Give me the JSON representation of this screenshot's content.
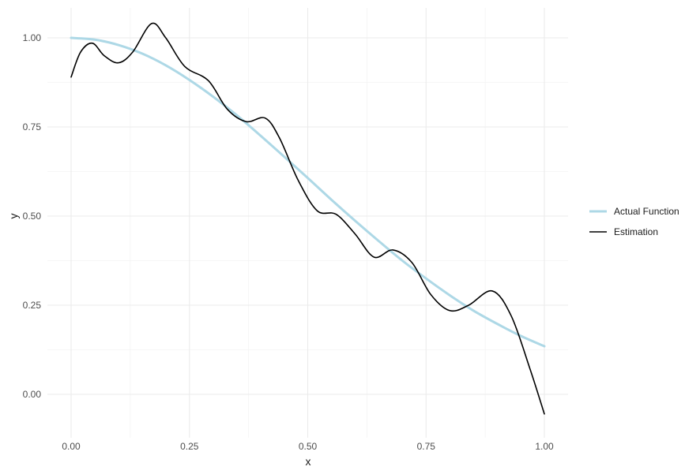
{
  "chart_data": {
    "type": "line",
    "title": "",
    "xlabel": "x",
    "ylabel": "y",
    "xlim": [
      -0.05,
      1.05
    ],
    "ylim": [
      -0.11,
      1.065
    ],
    "x_ticks": [
      0.0,
      0.25,
      0.5,
      0.75,
      1.0
    ],
    "x_tick_labels": [
      "0.00",
      "0.25",
      "0.50",
      "0.75",
      "1.00"
    ],
    "y_ticks": [
      0.0,
      0.25,
      0.5,
      0.75,
      1.0
    ],
    "y_tick_labels": [
      "0.00",
      "0.25",
      "0.50",
      "0.75",
      "1.00"
    ],
    "grid": true,
    "legend_position": "right",
    "series": [
      {
        "name": "Actual Function",
        "color": "#add8e6",
        "x": [
          0.0,
          0.05,
          0.1,
          0.15,
          0.2,
          0.25,
          0.3,
          0.35,
          0.4,
          0.45,
          0.5,
          0.55,
          0.6,
          0.65,
          0.7,
          0.75,
          0.8,
          0.85,
          0.9,
          0.95,
          1.0
        ],
        "y": [
          1.0,
          0.995,
          0.98,
          0.956,
          0.923,
          0.882,
          0.835,
          0.783,
          0.726,
          0.667,
          0.607,
          0.546,
          0.487,
          0.43,
          0.375,
          0.325,
          0.278,
          0.235,
          0.198,
          0.164,
          0.135
        ]
      },
      {
        "name": "Estimation",
        "color": "#000000",
        "x": [
          0.0,
          0.02,
          0.045,
          0.07,
          0.1,
          0.13,
          0.17,
          0.2,
          0.24,
          0.29,
          0.33,
          0.37,
          0.41,
          0.44,
          0.48,
          0.52,
          0.56,
          0.6,
          0.64,
          0.68,
          0.72,
          0.76,
          0.8,
          0.84,
          0.89,
          0.93,
          0.97,
          1.0
        ],
        "y": [
          0.89,
          0.96,
          0.985,
          0.95,
          0.93,
          0.96,
          1.04,
          1.0,
          0.92,
          0.88,
          0.8,
          0.765,
          0.775,
          0.72,
          0.6,
          0.515,
          0.505,
          0.45,
          0.385,
          0.405,
          0.37,
          0.28,
          0.235,
          0.25,
          0.29,
          0.22,
          0.07,
          -0.055
        ]
      }
    ]
  }
}
